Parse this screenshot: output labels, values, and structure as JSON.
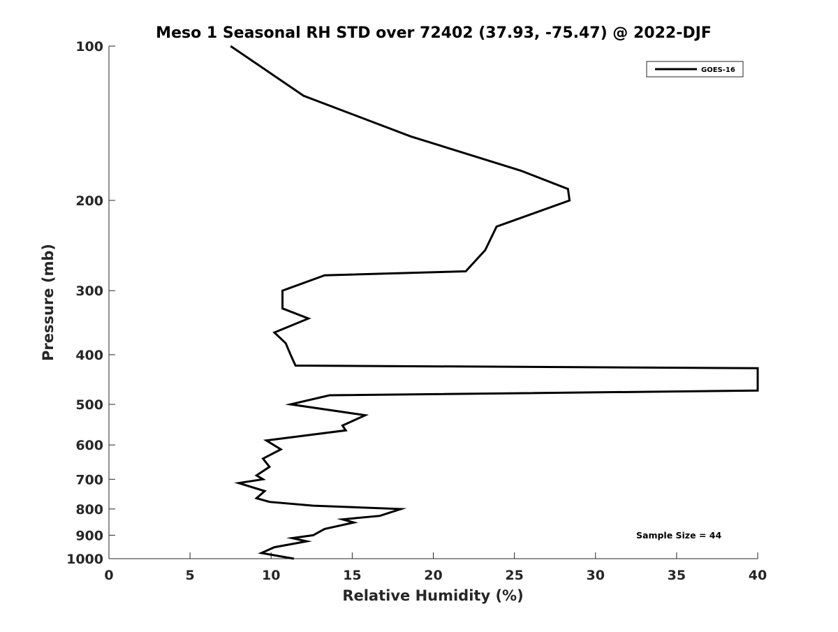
{
  "chart_data": {
    "type": "line",
    "title": "Meso 1 Seasonal RH STD over 72402 (37.93, -75.47) @ 2022-DJF",
    "xlabel": "Relative Humidity (%)",
    "ylabel": "Pressure (mb)",
    "xlim": [
      0,
      40
    ],
    "ylim": [
      100,
      1000
    ],
    "yscale": "log",
    "y_reversed": true,
    "grid": false,
    "legend_position": "top-right",
    "x_ticks": [
      0,
      5,
      10,
      15,
      20,
      25,
      30,
      35,
      40
    ],
    "y_ticks": [
      100,
      200,
      300,
      400,
      500,
      600,
      700,
      800,
      900,
      1000
    ],
    "series": [
      {
        "name": "GOES-16",
        "color": "#000000",
        "points": [
          [
            7.5,
            100
          ],
          [
            12,
            125
          ],
          [
            18.6,
            150
          ],
          [
            25.4,
            175
          ],
          [
            28.3,
            190
          ],
          [
            28.4,
            200
          ],
          [
            23.9,
            225
          ],
          [
            23.2,
            250
          ],
          [
            22,
            275
          ],
          [
            13.3,
            280
          ],
          [
            10.7,
            300
          ],
          [
            10.7,
            325
          ],
          [
            12.3,
            340
          ],
          [
            10.2,
            362
          ],
          [
            10.9,
            380
          ],
          [
            11.2,
            400
          ],
          [
            11.5,
            420
          ],
          [
            40,
            425
          ],
          [
            40,
            470
          ],
          [
            13.6,
            480
          ],
          [
            11.2,
            500
          ],
          [
            15.8,
            525
          ],
          [
            14.4,
            550
          ],
          [
            14.6,
            562
          ],
          [
            9.7,
            588
          ],
          [
            10.6,
            612
          ],
          [
            9.5,
            638
          ],
          [
            9.9,
            662
          ],
          [
            9.1,
            688
          ],
          [
            9.5,
            700
          ],
          [
            8.0,
            712
          ],
          [
            9.6,
            738
          ],
          [
            9.1,
            762
          ],
          [
            9.9,
            775
          ],
          [
            12.6,
            788
          ],
          [
            18.0,
            800
          ],
          [
            16.7,
            825
          ],
          [
            14.4,
            838
          ],
          [
            15.1,
            850
          ],
          [
            13.3,
            875
          ],
          [
            12.6,
            900
          ],
          [
            11.3,
            912
          ],
          [
            12.2,
            925
          ],
          [
            10.2,
            950
          ],
          [
            9.4,
            975
          ],
          [
            11.4,
            1000
          ]
        ]
      }
    ]
  },
  "legend": {
    "entry": "GOES-16"
  },
  "annotations": {
    "sample_size": "Sample Size = 44"
  }
}
